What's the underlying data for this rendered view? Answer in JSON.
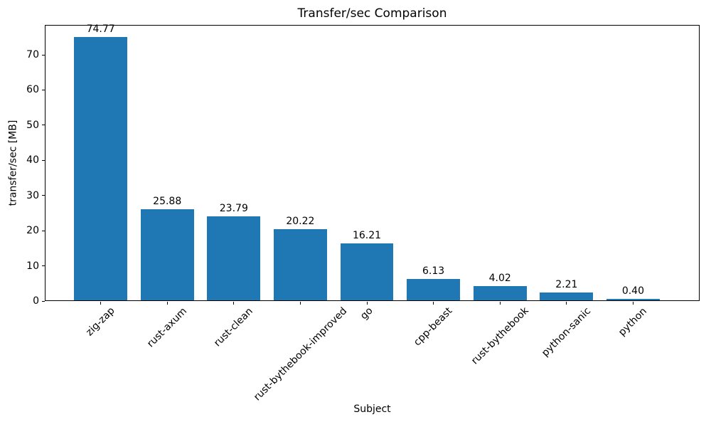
{
  "chart_data": {
    "type": "bar",
    "title": "Transfer/sec Comparison",
    "xlabel": "Subject",
    "ylabel": "transfer/sec [MB]",
    "categories": [
      "zig-zap",
      "rust-axum",
      "rust-clean",
      "rust-bythebook-improved",
      "go",
      "cpp-beast",
      "rust-bythebook",
      "python-sanic",
      "python"
    ],
    "values": [
      74.77,
      25.88,
      23.79,
      20.22,
      16.21,
      6.13,
      4.02,
      2.21,
      0.4
    ],
    "bar_labels": [
      "74.77",
      "25.88",
      "23.79",
      "20.22",
      "16.21",
      "6.13",
      "4.02",
      "2.21",
      "0.40"
    ],
    "yticks": [
      0,
      10,
      20,
      30,
      40,
      50,
      60,
      70
    ],
    "ylim": [
      0,
      78.5
    ],
    "bar_color": "#1f77b4",
    "grid": false,
    "legend": "none",
    "x_tick_rotation": 45
  }
}
